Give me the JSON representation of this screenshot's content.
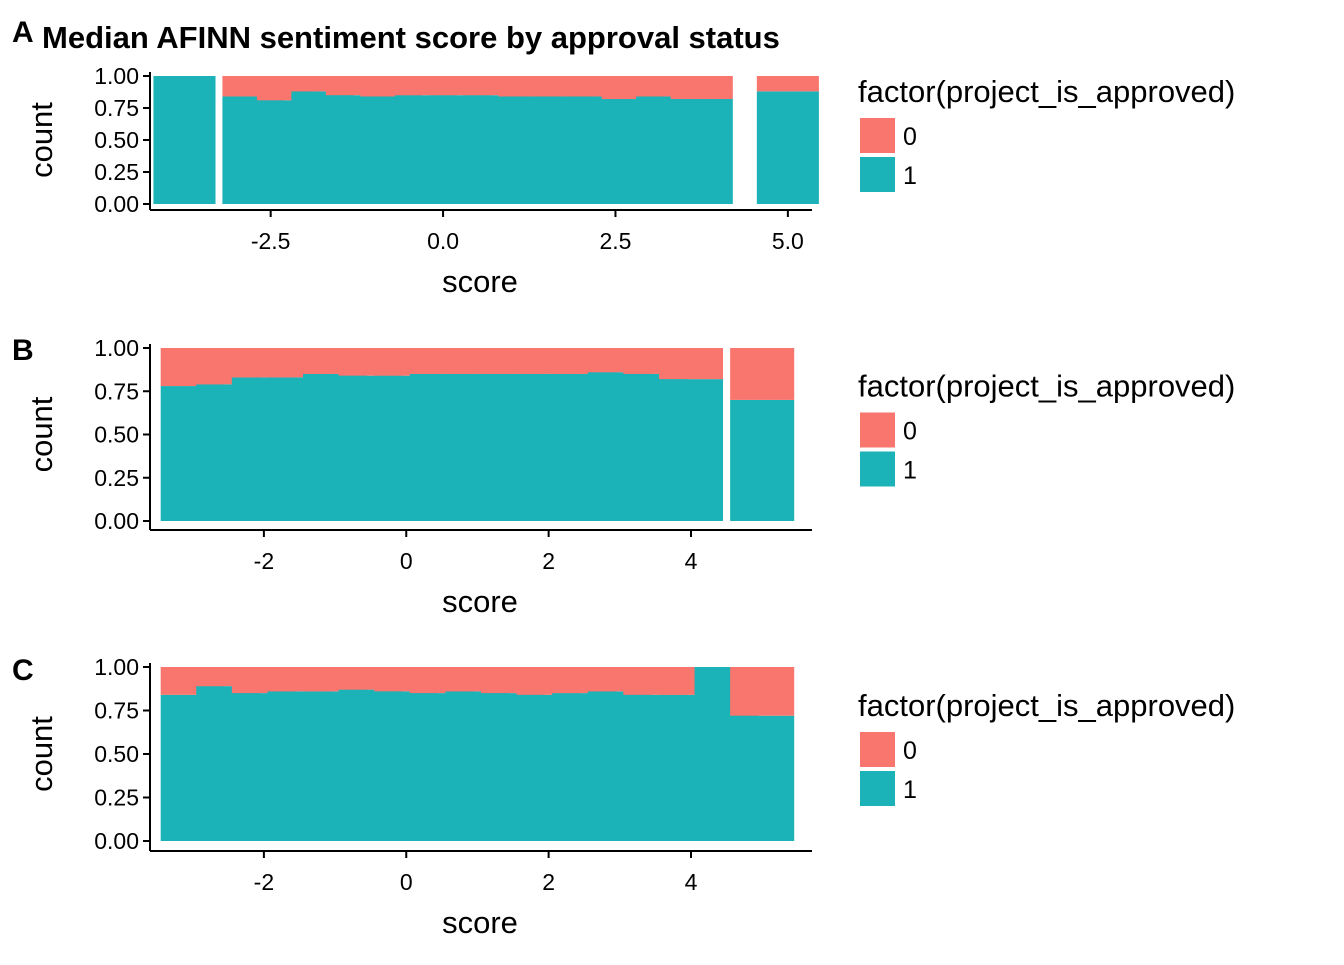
{
  "figure": {
    "title": "Median AFINN sentiment score by approval status"
  },
  "colors": {
    "class_0": "#F8766D",
    "class_1": "#1BB3B8",
    "axis": "#000000",
    "background": "#FFFFFF"
  },
  "legend": {
    "title": "factor(project_is_approved)",
    "items": [
      {
        "label": "0",
        "color_key": "class_0"
      },
      {
        "label": "1",
        "color_key": "class_1"
      }
    ],
    "placement": "right"
  },
  "chart_data": [
    {
      "panel": "A",
      "type": "bar",
      "stacked": "fill",
      "xlabel": "score",
      "ylabel": "count",
      "xlim": [
        -4.25,
        5.35
      ],
      "ylim": [
        0,
        1
      ],
      "x_ticks": [
        -2.5,
        0.0,
        2.5,
        5.0
      ],
      "x_tick_labels": [
        "-2.5",
        "0.0",
        "2.5",
        "5.0"
      ],
      "y_ticks": [
        0,
        0.25,
        0.5,
        0.75,
        1
      ],
      "y_tick_labels": [
        "0.00",
        "0.25",
        "0.50",
        "0.75",
        "1.00"
      ],
      "bar_width": 0.45,
      "x": [
        -3.75,
        -2.75,
        -2.25,
        -1.75,
        -1.25,
        -0.75,
        -0.25,
        0.25,
        0.75,
        1.25,
        1.75,
        2.25,
        2.75,
        3.25,
        3.75,
        5.0
      ],
      "series": [
        {
          "name": "1",
          "values": [
            1.0,
            0.84,
            0.81,
            0.88,
            0.85,
            0.84,
            0.85,
            0.85,
            0.85,
            0.84,
            0.84,
            0.84,
            0.82,
            0.84,
            0.85,
            0.88
          ]
        },
        {
          "name": "0",
          "values": [
            0.0,
            0.16,
            0.19,
            0.12,
            0.15,
            0.16,
            0.15,
            0.15,
            0.15,
            0.16,
            0.16,
            0.16,
            0.18,
            0.16,
            0.15,
            0.12
          ]
        }
      ],
      "extra_bar": {
        "x": 3.75,
        "values": [
          0.82,
          0.18
        ]
      },
      "grid": false
    },
    {
      "panel": "B",
      "type": "bar",
      "stacked": "fill",
      "xlabel": "score",
      "ylabel": "count",
      "xlim": [
        -3.6,
        5.7
      ],
      "ylim": [
        0,
        1
      ],
      "x_ticks": [
        -2,
        0,
        2,
        4
      ],
      "x_tick_labels": [
        "-2",
        "0",
        "2",
        "4"
      ],
      "y_ticks": [
        0,
        0.25,
        0.5,
        0.75,
        1
      ],
      "y_tick_labels": [
        "0.00",
        "0.25",
        "0.50",
        "0.75",
        "1.00"
      ],
      "bar_width": 0.45,
      "x": [
        -3.0,
        -2.5,
        -2.0,
        -1.5,
        -1.0,
        -0.5,
        0.0,
        0.5,
        1.0,
        1.5,
        2.0,
        2.5,
        3.0,
        3.5,
        4.0,
        5.0
      ],
      "series": [
        {
          "name": "1",
          "values": [
            0.78,
            0.79,
            0.83,
            0.83,
            0.85,
            0.84,
            0.84,
            0.85,
            0.85,
            0.85,
            0.85,
            0.85,
            0.86,
            0.85,
            0.82,
            0.7
          ]
        },
        {
          "name": "0",
          "values": [
            0.22,
            0.21,
            0.17,
            0.17,
            0.15,
            0.16,
            0.16,
            0.15,
            0.15,
            0.15,
            0.15,
            0.15,
            0.14,
            0.15,
            0.18,
            0.3
          ]
        }
      ],
      "grid": false
    },
    {
      "panel": "C",
      "type": "bar",
      "stacked": "fill",
      "xlabel": "score",
      "ylabel": "count",
      "xlim": [
        -3.6,
        5.7
      ],
      "ylim": [
        0,
        1
      ],
      "x_ticks": [
        -2,
        0,
        2,
        4
      ],
      "x_tick_labels": [
        "-2",
        "0",
        "2",
        "4"
      ],
      "y_ticks": [
        0,
        0.25,
        0.5,
        0.75,
        1
      ],
      "y_tick_labels": [
        "0.00",
        "0.25",
        "0.50",
        "0.75",
        "1.00"
      ],
      "bar_width": 0.45,
      "x": [
        -3.0,
        -2.5,
        -2.0,
        -1.5,
        -1.0,
        -0.5,
        0.0,
        0.5,
        1.0,
        1.5,
        2.0,
        2.5,
        3.0,
        3.5,
        4.0,
        4.5,
        5.0
      ],
      "series": [
        {
          "name": "1",
          "values": [
            0.84,
            0.89,
            0.85,
            0.86,
            0.86,
            0.87,
            0.86,
            0.85,
            0.86,
            0.85,
            0.84,
            0.85,
            0.86,
            0.84,
            0.84,
            1.0,
            0.72
          ]
        },
        {
          "name": "0",
          "values": [
            0.16,
            0.11,
            0.15,
            0.14,
            0.14,
            0.13,
            0.14,
            0.15,
            0.14,
            0.15,
            0.16,
            0.15,
            0.14,
            0.16,
            0.16,
            0.0,
            0.28
          ]
        }
      ],
      "grid": false
    }
  ]
}
